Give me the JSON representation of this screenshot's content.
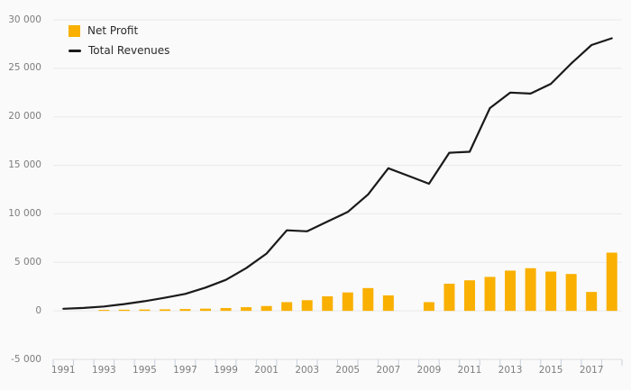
{
  "chart_data": {
    "type": "combo",
    "title": "",
    "xlabel": "",
    "ylabel": "",
    "categories": [
      1991,
      1992,
      1993,
      1994,
      1995,
      1996,
      1997,
      1998,
      1999,
      2000,
      2001,
      2002,
      2003,
      2004,
      2005,
      2006,
      2007,
      2008,
      2009,
      2010,
      2011,
      2012,
      2013,
      2014,
      2015,
      2016,
      2017,
      2018
    ],
    "series": [
      {
        "name": "Net Profit",
        "type": "bar",
        "color": "#F9B000",
        "values": [
          null,
          null,
          100,
          120,
          140,
          160,
          190,
          230,
          290,
          380,
          500,
          900,
          1100,
          1500,
          1900,
          2350,
          1600,
          0,
          900,
          2800,
          3150,
          3500,
          4150,
          4400,
          4050,
          3800,
          1950,
          6000
        ]
      },
      {
        "name": "Total Revenues",
        "type": "line",
        "color": "#1A1A1A",
        "values": [
          220,
          300,
          450,
          700,
          1000,
          1350,
          1750,
          2400,
          3200,
          4400,
          5900,
          8300,
          8200,
          9200,
          10200,
          12000,
          14700,
          13900,
          13100,
          16300,
          16400,
          20900,
          22500,
          22400,
          23400,
          25500,
          27400,
          28100
        ]
      }
    ],
    "ylim": [
      -5000,
      30000
    ],
    "y_ticks": [
      30000,
      25000,
      20000,
      15000,
      10000,
      5000,
      0,
      -5000
    ],
    "y_tick_labels": [
      "30 000",
      "25 000",
      "20 000",
      "15 000",
      "10 000",
      "5 000",
      "0",
      "-5 000"
    ],
    "x_tick_labels": [
      "1991",
      "1993",
      "1995",
      "1997",
      "1999",
      "2001",
      "2003",
      "2005",
      "2007",
      "2009",
      "2011",
      "2013",
      "2015",
      "2017"
    ],
    "legend_position": "top-left",
    "grid": "horizontal-only",
    "colors": {
      "background": "#FAFAFA",
      "gridline": "#E9E9E9",
      "axis_line": "#DEDEDE",
      "x_tick": "#C7D0DE",
      "axis_label_text": "#7D7D7D",
      "legend_text": "#2B2B2B"
    }
  }
}
